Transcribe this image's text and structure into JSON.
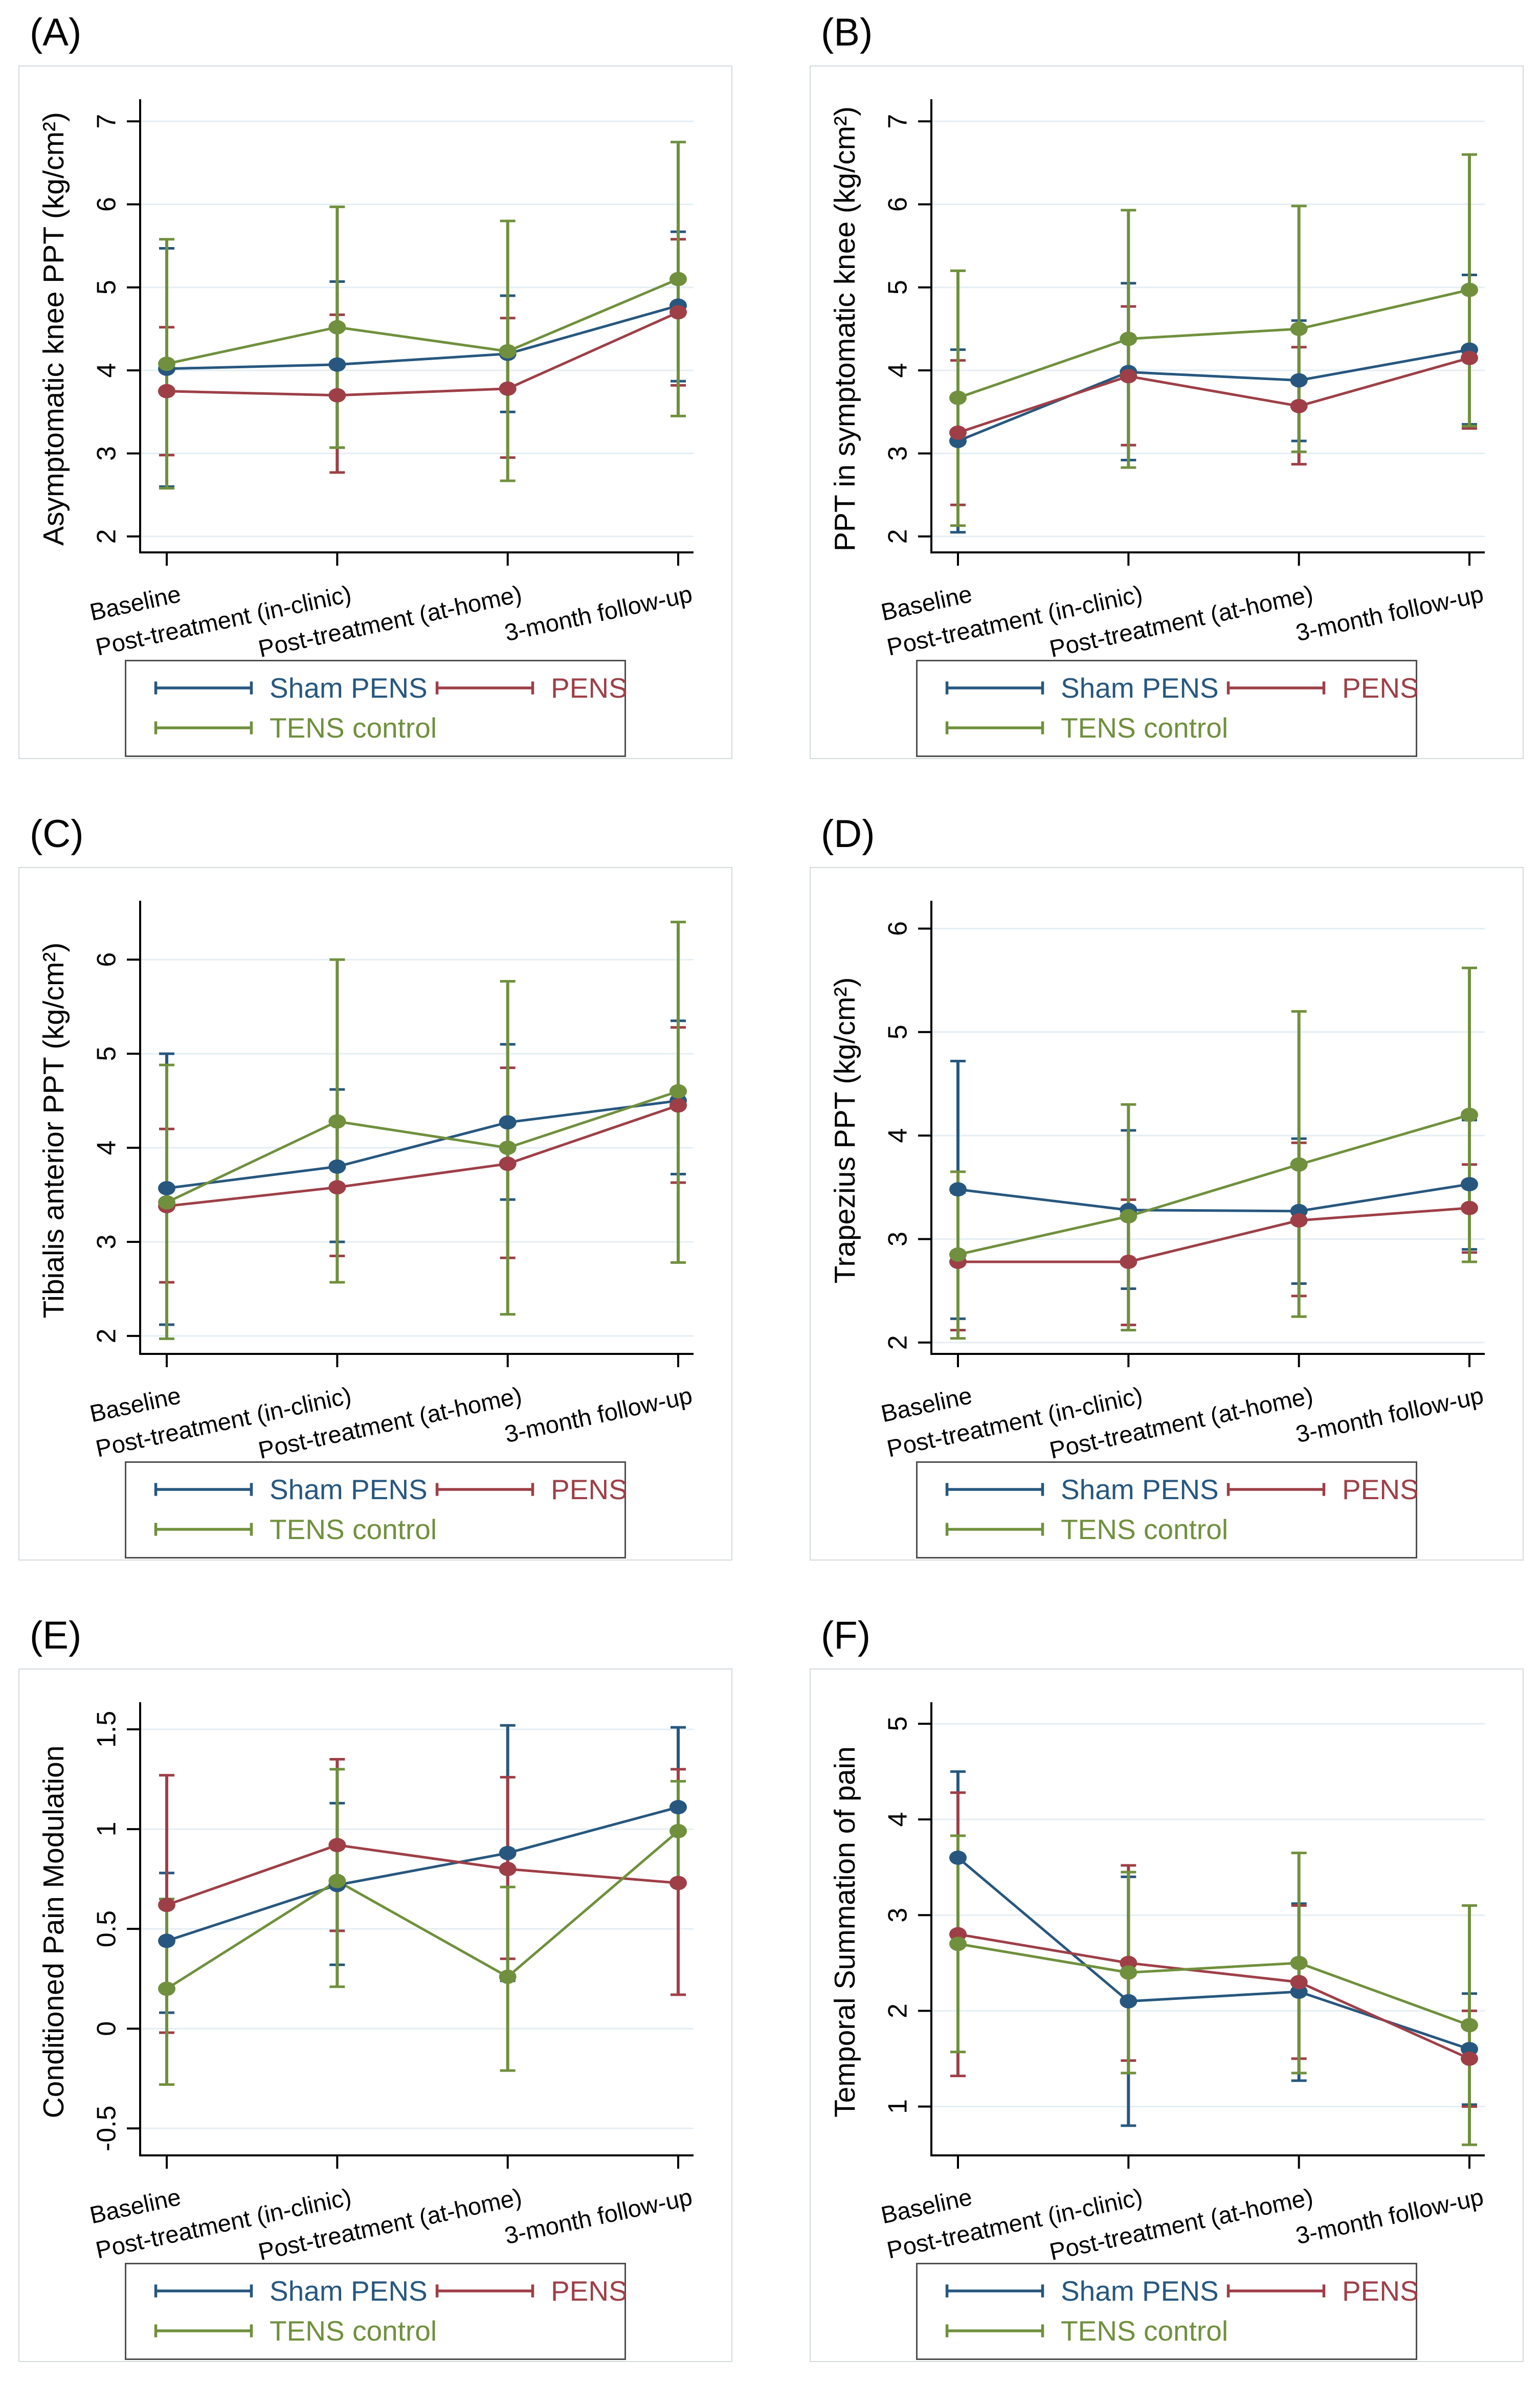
{
  "figure": {
    "categories": [
      "Baseline",
      "Post-treatment (in-clinic)",
      "Post-treatment (at-home)",
      "3-month follow-up"
    ],
    "legend": [
      {
        "label": "Sham PENS",
        "color": "#27577f"
      },
      {
        "label": "PENS",
        "color": "#9e3f47"
      },
      {
        "label": "TENS control",
        "color": "#70903d"
      }
    ],
    "grid_color": "#e4eef4",
    "axis_color": "#000000"
  },
  "chart_data": [
    {
      "type": "line",
      "panel": "(A)",
      "ylabel": "Asymptomatic knee PPT (kg/cm²)",
      "xlabel": "",
      "categories": [
        "Baseline",
        "Post-treatment (in-clinic)",
        "Post-treatment (at-home)",
        "3-month follow-up"
      ],
      "ylim": [
        1.82,
        7.18
      ],
      "yticks": [
        2,
        3,
        4,
        5,
        6,
        7
      ],
      "grid": true,
      "legend_position": "bottom",
      "series": [
        {
          "name": "Sham PENS",
          "values": [
            4.02,
            4.07,
            4.2,
            4.78
          ],
          "ci_low": [
            2.6,
            3.07,
            3.5,
            3.87
          ],
          "ci_high": [
            5.47,
            5.07,
            4.9,
            5.67
          ]
        },
        {
          "name": "PENS",
          "values": [
            3.75,
            3.7,
            3.78,
            4.7
          ],
          "ci_low": [
            2.98,
            2.77,
            2.95,
            3.82
          ],
          "ci_high": [
            4.52,
            4.67,
            4.63,
            5.58
          ]
        },
        {
          "name": "TENS control",
          "values": [
            4.08,
            4.52,
            4.23,
            5.1
          ],
          "ci_low": [
            2.58,
            3.07,
            2.67,
            3.45
          ],
          "ci_high": [
            5.58,
            5.97,
            5.8,
            6.75
          ]
        }
      ]
    },
    {
      "type": "line",
      "panel": "(B)",
      "ylabel": "PPT in symptomatic knee (kg/cm²)",
      "xlabel": "",
      "categories": [
        "Baseline",
        "Post-treatment (in-clinic)",
        "Post-treatment (at-home)",
        "3-month follow-up"
      ],
      "ylim": [
        1.82,
        7.18
      ],
      "yticks": [
        2,
        3,
        4,
        5,
        6,
        7
      ],
      "grid": true,
      "legend_position": "bottom",
      "series": [
        {
          "name": "Sham PENS",
          "values": [
            3.15,
            3.98,
            3.88,
            4.25
          ],
          "ci_low": [
            2.05,
            2.92,
            3.15,
            3.35
          ],
          "ci_high": [
            4.25,
            5.05,
            4.6,
            5.15
          ]
        },
        {
          "name": "PENS",
          "values": [
            3.25,
            3.93,
            3.57,
            4.15
          ],
          "ci_low": [
            2.38,
            3.1,
            2.87,
            3.3
          ],
          "ci_high": [
            4.12,
            4.77,
            4.28,
            5.0
          ]
        },
        {
          "name": "TENS control",
          "values": [
            3.67,
            4.38,
            4.5,
            4.97
          ],
          "ci_low": [
            2.13,
            2.83,
            3.02,
            3.33
          ],
          "ci_high": [
            5.2,
            5.93,
            5.98,
            6.6
          ]
        }
      ]
    },
    {
      "type": "line",
      "panel": "(C)",
      "ylabel": "Tibialis anterior PPT (kg/cm²)",
      "xlabel": "",
      "categories": [
        "Baseline",
        "Post-treatment (in-clinic)",
        "Post-treatment (at-home)",
        "3-month follow-up"
      ],
      "ylim": [
        1.82,
        6.55
      ],
      "yticks": [
        2,
        3,
        4,
        5,
        6
      ],
      "grid": true,
      "legend_position": "bottom",
      "series": [
        {
          "name": "Sham PENS",
          "values": [
            3.57,
            3.8,
            4.27,
            4.5
          ],
          "ci_low": [
            2.12,
            3.0,
            3.45,
            3.72
          ],
          "ci_high": [
            5.0,
            4.62,
            5.1,
            5.35
          ]
        },
        {
          "name": "PENS",
          "values": [
            3.38,
            3.58,
            3.83,
            4.45
          ],
          "ci_low": [
            2.57,
            2.85,
            2.83,
            3.63
          ],
          "ci_high": [
            4.2,
            4.3,
            4.85,
            5.28
          ]
        },
        {
          "name": "TENS control",
          "values": [
            3.42,
            4.28,
            4.0,
            4.6
          ],
          "ci_low": [
            1.97,
            2.57,
            2.23,
            2.78
          ],
          "ci_high": [
            4.88,
            6.0,
            5.77,
            6.4
          ]
        }
      ]
    },
    {
      "type": "line",
      "panel": "(D)",
      "ylabel": "Trapezius PPT (kg/cm²)",
      "xlabel": "",
      "categories": [
        "Baseline",
        "Post-treatment (in-clinic)",
        "Post-treatment (at-home)",
        "3-month follow-up"
      ],
      "ylim": [
        1.9,
        6.2
      ],
      "yticks": [
        2,
        3,
        4,
        5,
        6
      ],
      "grid": true,
      "legend_position": "bottom",
      "series": [
        {
          "name": "Sham PENS",
          "values": [
            3.48,
            3.28,
            3.27,
            3.53
          ],
          "ci_low": [
            2.23,
            2.52,
            2.57,
            2.9
          ],
          "ci_high": [
            4.72,
            4.05,
            3.97,
            4.15
          ]
        },
        {
          "name": "PENS",
          "values": [
            2.78,
            2.78,
            3.18,
            3.3
          ],
          "ci_low": [
            2.12,
            2.17,
            2.45,
            2.87
          ],
          "ci_high": [
            3.45,
            3.38,
            3.93,
            3.72
          ]
        },
        {
          "name": "TENS control",
          "values": [
            2.85,
            3.22,
            3.72,
            4.2
          ],
          "ci_low": [
            2.04,
            2.12,
            2.25,
            2.78
          ],
          "ci_high": [
            3.65,
            4.3,
            5.2,
            5.62
          ]
        }
      ]
    },
    {
      "type": "line",
      "panel": "(E)",
      "ylabel": "Conditioned Pain Modulation",
      "xlabel": "",
      "categories": [
        "Baseline",
        "Post-treatment (in-clinic)",
        "Post-treatment (at-home)",
        "3-month follow-up"
      ],
      "ylim": [
        -0.63,
        1.6
      ],
      "yticks": [
        -0.5,
        0,
        0.5,
        1,
        1.5
      ],
      "ytick_labels": [
        "-0.5",
        "0",
        "0.5",
        "1",
        "1.5"
      ],
      "grid": true,
      "legend_position": "bottom",
      "series": [
        {
          "name": "Sham PENS",
          "values": [
            0.44,
            0.72,
            0.88,
            1.11
          ],
          "ci_low": [
            0.08,
            0.32,
            0.24,
            0.72
          ],
          "ci_high": [
            0.78,
            1.13,
            1.52,
            1.51
          ]
        },
        {
          "name": "PENS",
          "values": [
            0.62,
            0.92,
            0.8,
            0.73
          ],
          "ci_low": [
            -0.02,
            0.49,
            0.35,
            0.17
          ],
          "ci_high": [
            1.27,
            1.35,
            1.26,
            1.3
          ]
        },
        {
          "name": "TENS control",
          "values": [
            0.2,
            0.74,
            0.26,
            0.99
          ],
          "ci_low": [
            -0.28,
            0.21,
            -0.21,
            0.74
          ],
          "ci_high": [
            0.65,
            1.3,
            0.71,
            1.24
          ]
        }
      ]
    },
    {
      "type": "line",
      "panel": "(F)",
      "ylabel": "Temporal Summation of pain",
      "xlabel": "",
      "categories": [
        "Baseline",
        "Post-treatment (in-clinic)",
        "Post-treatment (at-home)",
        "3-month follow-up"
      ],
      "ylim": [
        0.5,
        5.15
      ],
      "yticks": [
        1,
        2,
        3,
        4,
        5
      ],
      "grid": true,
      "legend_position": "bottom",
      "series": [
        {
          "name": "Sham PENS",
          "values": [
            3.6,
            2.1,
            2.2,
            1.6
          ],
          "ci_low": [
            2.7,
            0.8,
            1.27,
            1.02
          ],
          "ci_high": [
            4.5,
            3.4,
            3.12,
            2.18
          ]
        },
        {
          "name": "PENS",
          "values": [
            2.8,
            2.5,
            2.3,
            1.5
          ],
          "ci_low": [
            1.32,
            1.48,
            1.5,
            1.0
          ],
          "ci_high": [
            4.28,
            3.52,
            3.1,
            2.0
          ]
        },
        {
          "name": "TENS control",
          "values": [
            2.7,
            2.4,
            2.5,
            1.85
          ],
          "ci_low": [
            1.57,
            1.35,
            1.35,
            0.6
          ],
          "ci_high": [
            3.83,
            3.45,
            3.65,
            3.1
          ]
        }
      ]
    }
  ]
}
